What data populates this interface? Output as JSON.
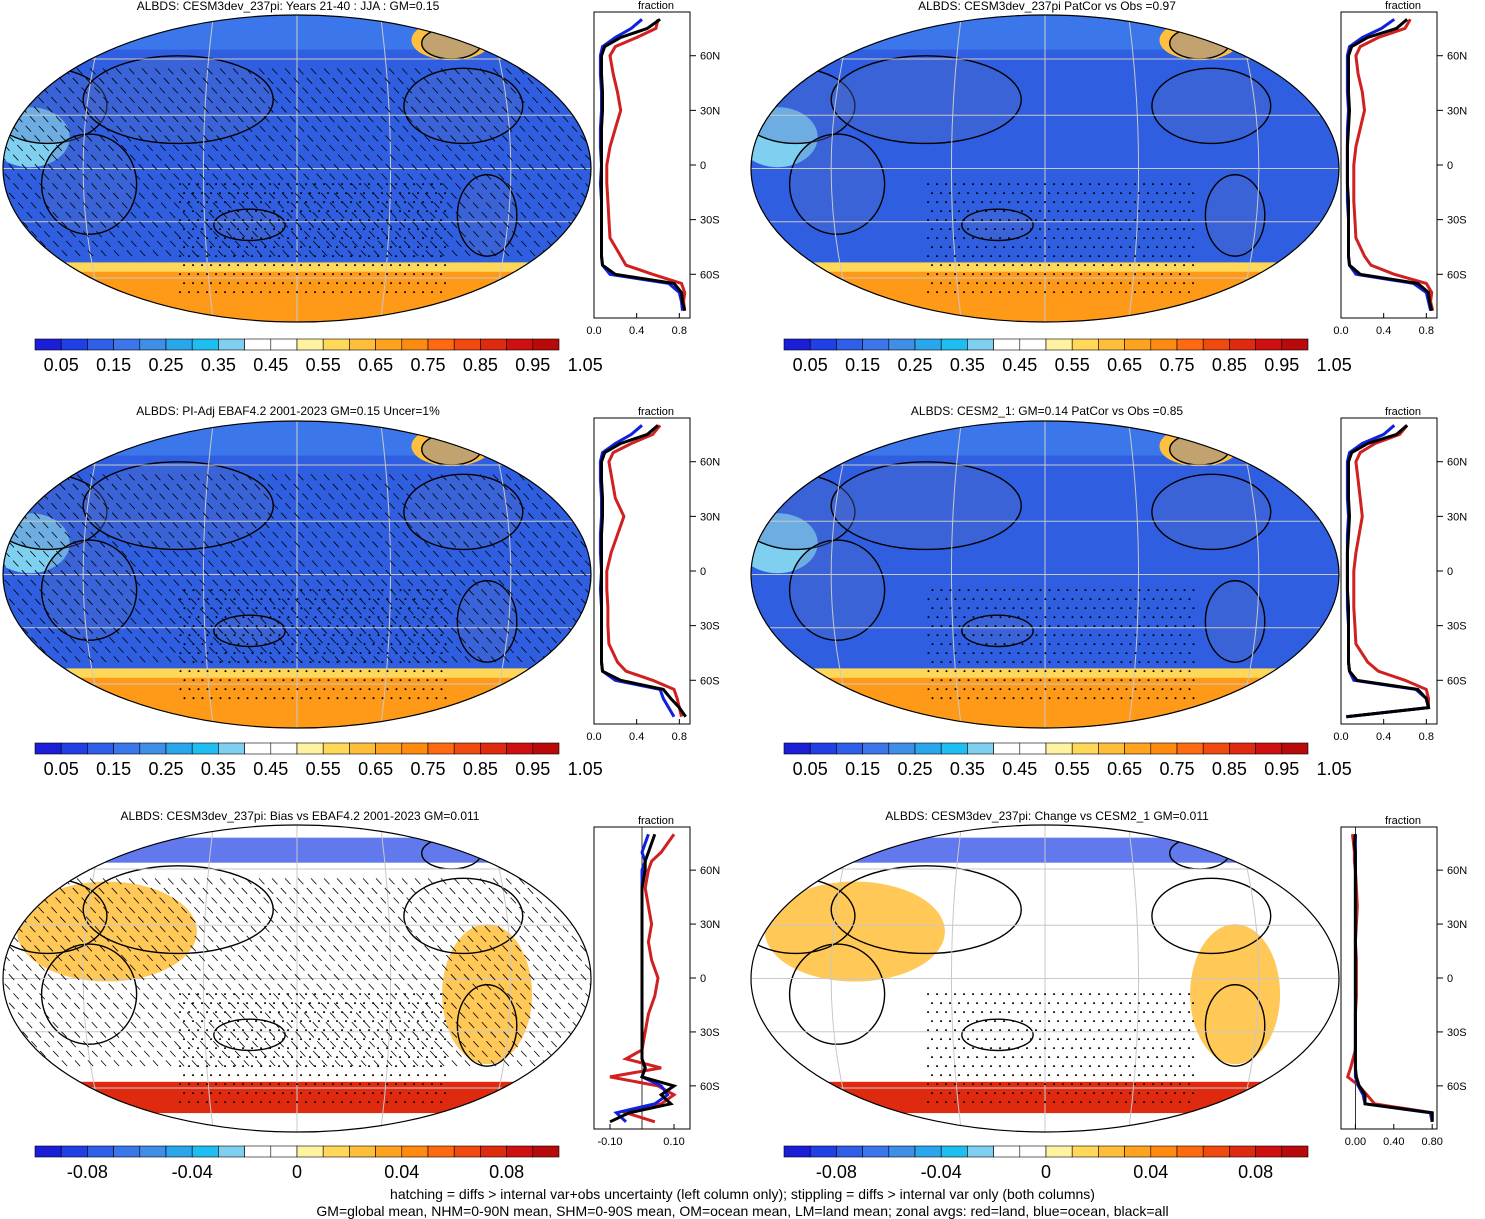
{
  "colors": {
    "seq_scale": [
      "#1b1ed6",
      "#2040e6",
      "#2f5fe8",
      "#3b77ea",
      "#3f8fe6",
      "#2aa6ec",
      "#1fbef0",
      "#7fd0f0",
      "#ffffff",
      "#ffffff",
      "#fff2a0",
      "#ffd85a",
      "#ffbe3a",
      "#ffa21e",
      "#ff8a10",
      "#ff6a10",
      "#f04a10",
      "#e02a10",
      "#d01010",
      "#b80a0a"
    ],
    "div_scale": [
      "#1b1ed6",
      "#2040e6",
      "#2f5fe8",
      "#3b77ea",
      "#3f8fe6",
      "#2aa6ec",
      "#1fbef0",
      "#7fd0f0",
      "#ffffff",
      "#ffffff",
      "#fff2a0",
      "#ffd85a",
      "#ffbe3a",
      "#ffa21e",
      "#ff8a10",
      "#ff6a10",
      "#f04a10",
      "#e02a10",
      "#d01010",
      "#b80a0a"
    ],
    "land_line": "#d02020",
    "ocean_line": "#1020e0",
    "all_line": "#000000"
  },
  "chart_data": [
    {
      "type": "heatmap",
      "title": "ALBDS: CESM3dev_237pi: Years 21-40 : JJA : GM=0.15",
      "scale": "seq",
      "hatching": true,
      "colorbar_labels": [
        "0.05",
        "0.15",
        "0.25",
        "0.35",
        "0.45",
        "0.55",
        "0.65",
        "0.75",
        "0.85",
        "0.95",
        "1.05"
      ],
      "zonal": {
        "xlabel": "fraction",
        "xlim": [
          0,
          0.9
        ],
        "xticks": [
          "0.0",
          "0.4",
          "0.8"
        ],
        "lat_ticks": [
          "60N",
          "30N",
          "0",
          "30S",
          "60S"
        ],
        "lat": [
          80,
          75,
          70,
          65,
          60,
          50,
          40,
          30,
          20,
          10,
          0,
          -10,
          -20,
          -30,
          -40,
          -50,
          -55,
          -60,
          -65,
          -70,
          -75,
          -80
        ],
        "land": [
          0.6,
          0.58,
          0.4,
          0.2,
          0.15,
          0.18,
          0.22,
          0.25,
          0.2,
          0.15,
          0.12,
          0.12,
          0.13,
          0.14,
          0.15,
          0.25,
          0.3,
          0.55,
          0.82,
          0.85,
          0.84,
          0.85
        ],
        "ocean": [
          0.45,
          0.35,
          0.2,
          0.08,
          0.06,
          0.06,
          0.07,
          0.07,
          0.06,
          0.06,
          0.07,
          0.06,
          0.07,
          0.07,
          0.07,
          0.07,
          0.08,
          0.15,
          0.7,
          0.8,
          0.82,
          0.83
        ],
        "all": [
          0.62,
          0.5,
          0.25,
          0.1,
          0.07,
          0.07,
          0.08,
          0.08,
          0.07,
          0.07,
          0.07,
          0.07,
          0.07,
          0.07,
          0.07,
          0.07,
          0.08,
          0.2,
          0.75,
          0.82,
          0.83,
          0.85
        ]
      }
    },
    {
      "type": "heatmap",
      "title": "ALBDS: CESM3dev_237pi PatCor vs Obs =0.97",
      "scale": "seq",
      "hatching": false,
      "colorbar_labels": [
        "0.05",
        "0.15",
        "0.25",
        "0.35",
        "0.45",
        "0.55",
        "0.65",
        "0.75",
        "0.85",
        "0.95",
        "1.05"
      ],
      "zonal": {
        "xlabel": "fraction",
        "xlim": [
          0,
          0.9
        ],
        "xticks": [
          "0.0",
          "0.4",
          "0.8"
        ],
        "lat_ticks": [
          "60N",
          "30N",
          "0",
          "30S",
          "60S"
        ],
        "lat": [
          80,
          75,
          70,
          65,
          60,
          50,
          40,
          30,
          20,
          10,
          0,
          -10,
          -20,
          -30,
          -40,
          -50,
          -55,
          -60,
          -65,
          -70,
          -75,
          -80
        ],
        "land": [
          0.65,
          0.6,
          0.35,
          0.18,
          0.14,
          0.16,
          0.2,
          0.22,
          0.18,
          0.14,
          0.12,
          0.12,
          0.12,
          0.13,
          0.14,
          0.22,
          0.28,
          0.5,
          0.8,
          0.85,
          0.84,
          0.86
        ],
        "ocean": [
          0.5,
          0.38,
          0.2,
          0.08,
          0.06,
          0.06,
          0.06,
          0.07,
          0.06,
          0.06,
          0.06,
          0.06,
          0.06,
          0.07,
          0.07,
          0.07,
          0.08,
          0.14,
          0.68,
          0.8,
          0.82,
          0.84
        ],
        "all": [
          0.62,
          0.52,
          0.25,
          0.1,
          0.07,
          0.07,
          0.07,
          0.08,
          0.07,
          0.06,
          0.06,
          0.06,
          0.07,
          0.07,
          0.07,
          0.07,
          0.08,
          0.18,
          0.72,
          0.82,
          0.83,
          0.85
        ]
      }
    },
    {
      "type": "heatmap",
      "title": "ALBDS: PI-Adj EBAF4.2 2001-2023 GM=0.15 Uncer=1%",
      "scale": "seq",
      "hatching": true,
      "colorbar_labels": [
        "0.05",
        "0.15",
        "0.25",
        "0.35",
        "0.45",
        "0.55",
        "0.65",
        "0.75",
        "0.85",
        "0.95",
        "1.05"
      ],
      "zonal": {
        "xlabel": "fraction",
        "xlim": [
          0,
          0.9
        ],
        "xticks": [
          "0.0",
          "0.4",
          "0.8"
        ],
        "lat_ticks": [
          "60N",
          "30N",
          "0",
          "30S",
          "60S"
        ],
        "lat": [
          80,
          75,
          70,
          65,
          60,
          50,
          40,
          30,
          20,
          10,
          0,
          -10,
          -20,
          -30,
          -40,
          -50,
          -55,
          -60,
          -65,
          -70,
          -75,
          -80
        ],
        "land": [
          0.62,
          0.55,
          0.35,
          0.18,
          0.14,
          0.17,
          0.2,
          0.28,
          0.22,
          0.16,
          0.12,
          0.12,
          0.13,
          0.13,
          0.14,
          0.22,
          0.3,
          0.55,
          0.75,
          0.78,
          0.8,
          0.82
        ],
        "ocean": [
          0.45,
          0.35,
          0.2,
          0.08,
          0.06,
          0.06,
          0.07,
          0.07,
          0.06,
          0.06,
          0.07,
          0.06,
          0.07,
          0.07,
          0.07,
          0.07,
          0.08,
          0.2,
          0.62,
          0.65,
          0.7,
          0.75
        ],
        "all": [
          0.6,
          0.5,
          0.25,
          0.1,
          0.07,
          0.07,
          0.08,
          0.08,
          0.07,
          0.07,
          0.07,
          0.07,
          0.07,
          0.07,
          0.07,
          0.07,
          0.08,
          0.25,
          0.65,
          0.72,
          0.8,
          0.86
        ]
      }
    },
    {
      "type": "heatmap",
      "title": "ALBDS: CESM2_1: GM=0.14 PatCor vs Obs =0.85",
      "scale": "seq",
      "hatching": false,
      "colorbar_labels": [
        "0.05",
        "0.15",
        "0.25",
        "0.35",
        "0.45",
        "0.55",
        "0.65",
        "0.75",
        "0.85",
        "0.95",
        "1.05"
      ],
      "zonal": {
        "xlabel": "fraction",
        "xlim": [
          0,
          0.9
        ],
        "xticks": [
          "0.0",
          "0.4",
          "0.8"
        ],
        "lat_ticks": [
          "60N",
          "30N",
          "0",
          "30S",
          "60S"
        ],
        "lat": [
          80,
          75,
          70,
          65,
          60,
          50,
          40,
          30,
          20,
          10,
          0,
          -10,
          -20,
          -30,
          -40,
          -50,
          -55,
          -60,
          -65,
          -70,
          -75,
          -80
        ],
        "land": [
          0.62,
          0.55,
          0.32,
          0.18,
          0.14,
          0.16,
          0.18,
          0.2,
          0.17,
          0.14,
          0.12,
          0.12,
          0.12,
          0.13,
          0.14,
          0.25,
          0.35,
          0.6,
          0.8,
          0.82,
          0.82,
          0.05
        ],
        "ocean": [
          0.5,
          0.4,
          0.2,
          0.08,
          0.06,
          0.06,
          0.06,
          0.07,
          0.06,
          0.06,
          0.06,
          0.06,
          0.06,
          0.07,
          0.07,
          0.07,
          0.08,
          0.12,
          0.7,
          0.8,
          0.82,
          0.05
        ],
        "all": [
          0.62,
          0.52,
          0.25,
          0.1,
          0.07,
          0.07,
          0.07,
          0.08,
          0.07,
          0.06,
          0.06,
          0.06,
          0.07,
          0.07,
          0.07,
          0.07,
          0.08,
          0.15,
          0.72,
          0.8,
          0.82,
          0.05
        ]
      }
    },
    {
      "type": "heatmap",
      "title": "ALBDS: CESM3dev_237pi: Bias vs EBAF4.2 2001-2023 GM=0.011",
      "scale": "div",
      "hatching": true,
      "colorbar_labels": [
        "-0.08",
        "-0.04",
        "0",
        "0.04",
        "0.08"
      ],
      "zonal": {
        "xlabel": "fraction",
        "xlim": [
          -0.15,
          0.15
        ],
        "xticks": [
          "-0.10",
          "0.10"
        ],
        "lat_ticks": [
          "60N",
          "30N",
          "0",
          "30S",
          "60S"
        ],
        "lat": [
          80,
          75,
          70,
          65,
          60,
          50,
          40,
          30,
          20,
          10,
          0,
          -10,
          -20,
          -30,
          -40,
          -45,
          -50,
          -55,
          -60,
          -65,
          -70,
          -75,
          -80
        ],
        "land": [
          0.1,
          0.08,
          0.06,
          0.03,
          0.02,
          0.01,
          0.02,
          0.03,
          0.02,
          0.03,
          0.05,
          0.04,
          0.02,
          0.01,
          0.0,
          -0.05,
          0.06,
          -0.1,
          0.05,
          0.1,
          0.06,
          -0.05,
          0.04
        ],
        "ocean": [
          0.02,
          0.01,
          0.0,
          0.01,
          0.0,
          0.0,
          0.0,
          0.0,
          0.0,
          0.0,
          0.0,
          0.0,
          0.0,
          0.0,
          0.0,
          0.0,
          0.01,
          0.0,
          0.06,
          0.08,
          0.04,
          -0.08,
          -0.05
        ],
        "all": [
          0.04,
          0.03,
          0.02,
          0.01,
          0.01,
          0.0,
          0.0,
          0.0,
          0.0,
          0.0,
          0.0,
          0.0,
          0.0,
          0.0,
          0.0,
          0.0,
          0.01,
          0.0,
          0.1,
          0.06,
          0.09,
          -0.04,
          -0.1
        ]
      }
    },
    {
      "type": "heatmap",
      "title": "ALBDS: CESM3dev_237pi: Change vs CESM2_1 GM=0.011",
      "scale": "div",
      "hatching": false,
      "colorbar_labels": [
        "-0.08",
        "-0.04",
        "0",
        "0.04",
        "0.08"
      ],
      "zonal": {
        "xlabel": "fraction",
        "xlim": [
          -0.15,
          0.85
        ],
        "xticks": [
          "0.00",
          "0.40",
          "0.80"
        ],
        "lat_ticks": [
          "60N",
          "30N",
          "0",
          "30S",
          "60S"
        ],
        "lat": [
          80,
          75,
          70,
          65,
          60,
          50,
          40,
          30,
          20,
          10,
          0,
          -10,
          -20,
          -30,
          -40,
          -50,
          -55,
          -60,
          -65,
          -70,
          -75,
          -80
        ],
        "land": [
          -0.03,
          -0.02,
          -0.01,
          -0.01,
          0.0,
          0.01,
          0.02,
          0.01,
          0.0,
          0.01,
          0.01,
          0.01,
          0.0,
          0.0,
          0.0,
          -0.05,
          -0.08,
          0.04,
          0.12,
          0.2,
          0.8,
          0.8
        ],
        "ocean": [
          0.0,
          0.0,
          0.0,
          0.0,
          0.0,
          0.0,
          0.0,
          0.0,
          0.0,
          0.0,
          0.0,
          0.0,
          0.0,
          0.0,
          0.0,
          0.0,
          0.0,
          0.03,
          0.08,
          0.1,
          0.78,
          0.8
        ],
        "all": [
          0.0,
          -0.01,
          0.0,
          0.0,
          0.0,
          0.0,
          0.0,
          0.0,
          0.0,
          0.0,
          0.0,
          0.0,
          0.0,
          0.0,
          0.0,
          0.0,
          0.01,
          0.04,
          0.1,
          0.1,
          0.8,
          0.8
        ]
      }
    }
  ],
  "footer": {
    "line1": "hatching = diffs > internal var+obs uncertainty (left column only); stippling = diffs > internal var only (both columns)",
    "line2": "GM=global mean, NHM=0-90N mean, SHM=0-90S mean, OM=ocean mean, LM=land mean; zonal avgs: red=land, blue=ocean, black=all"
  }
}
